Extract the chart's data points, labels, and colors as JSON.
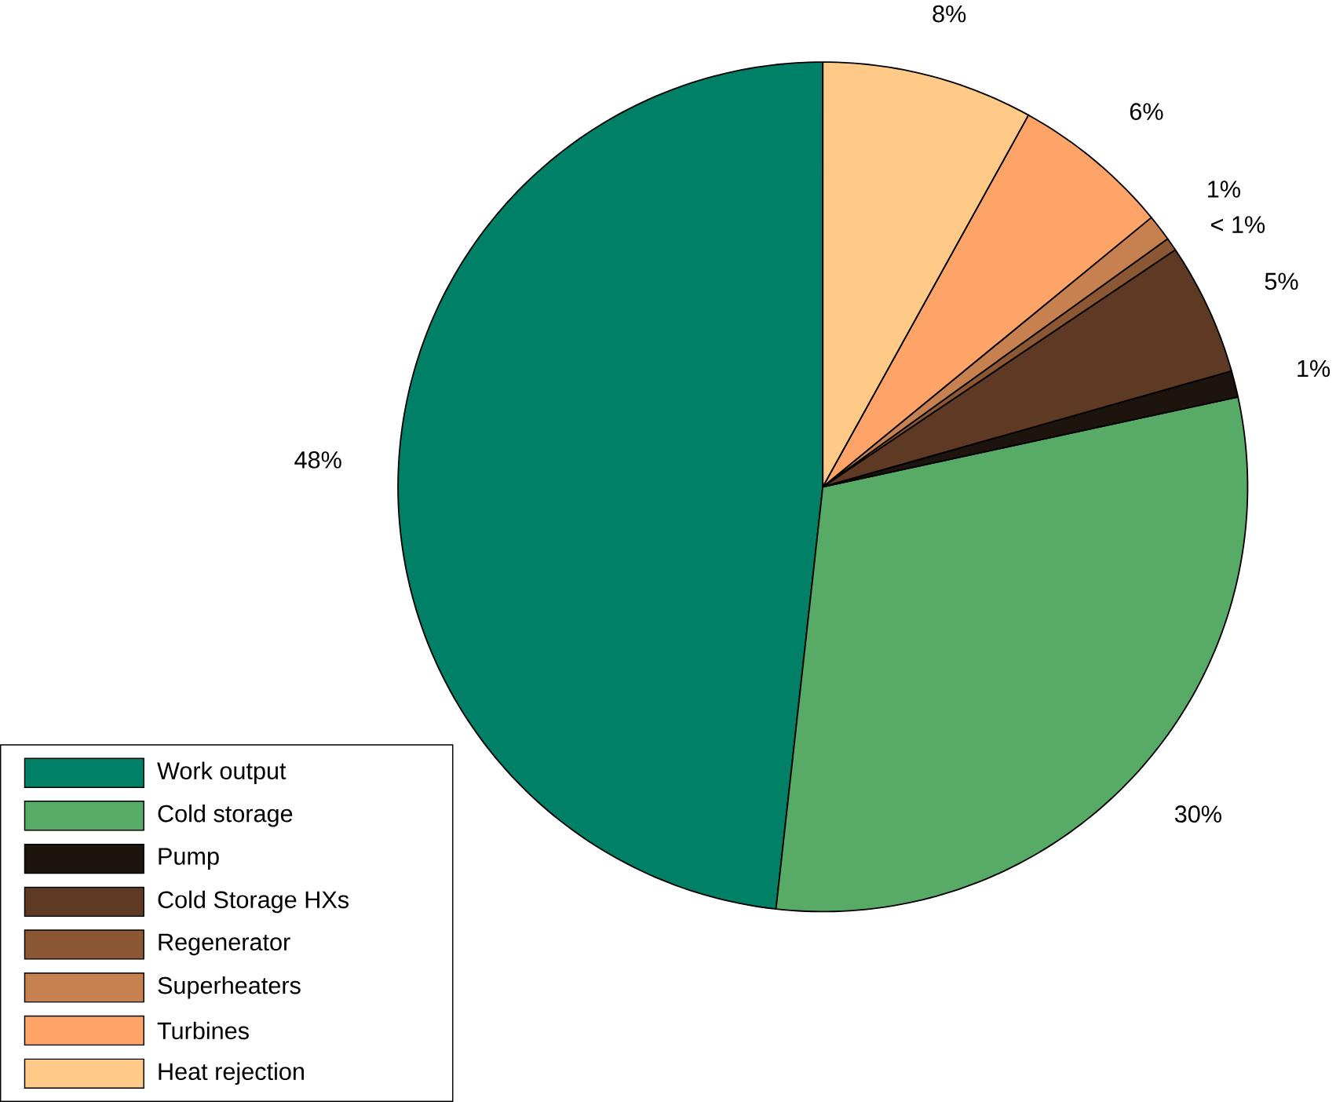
{
  "chart_data": {
    "type": "pie",
    "categories": [
      "Work output",
      "Cold storage",
      "Pump",
      "Cold Storage HXs",
      "Regenerator",
      "Superheaters",
      "Turbines",
      "Heat rejection"
    ],
    "values": [
      48,
      30,
      1,
      5,
      0.5,
      1,
      6,
      8
    ],
    "value_labels": [
      "48%",
      "30%",
      "1%",
      "5%",
      "< 1%",
      "1%",
      "6%",
      "8%"
    ],
    "colors": [
      "#008066",
      "#58ab67",
      "#1e140e",
      "#5e3a24",
      "#8c5733",
      "#c7804f",
      "#ffa468",
      "#ffc987"
    ],
    "legend": "bottom left"
  }
}
